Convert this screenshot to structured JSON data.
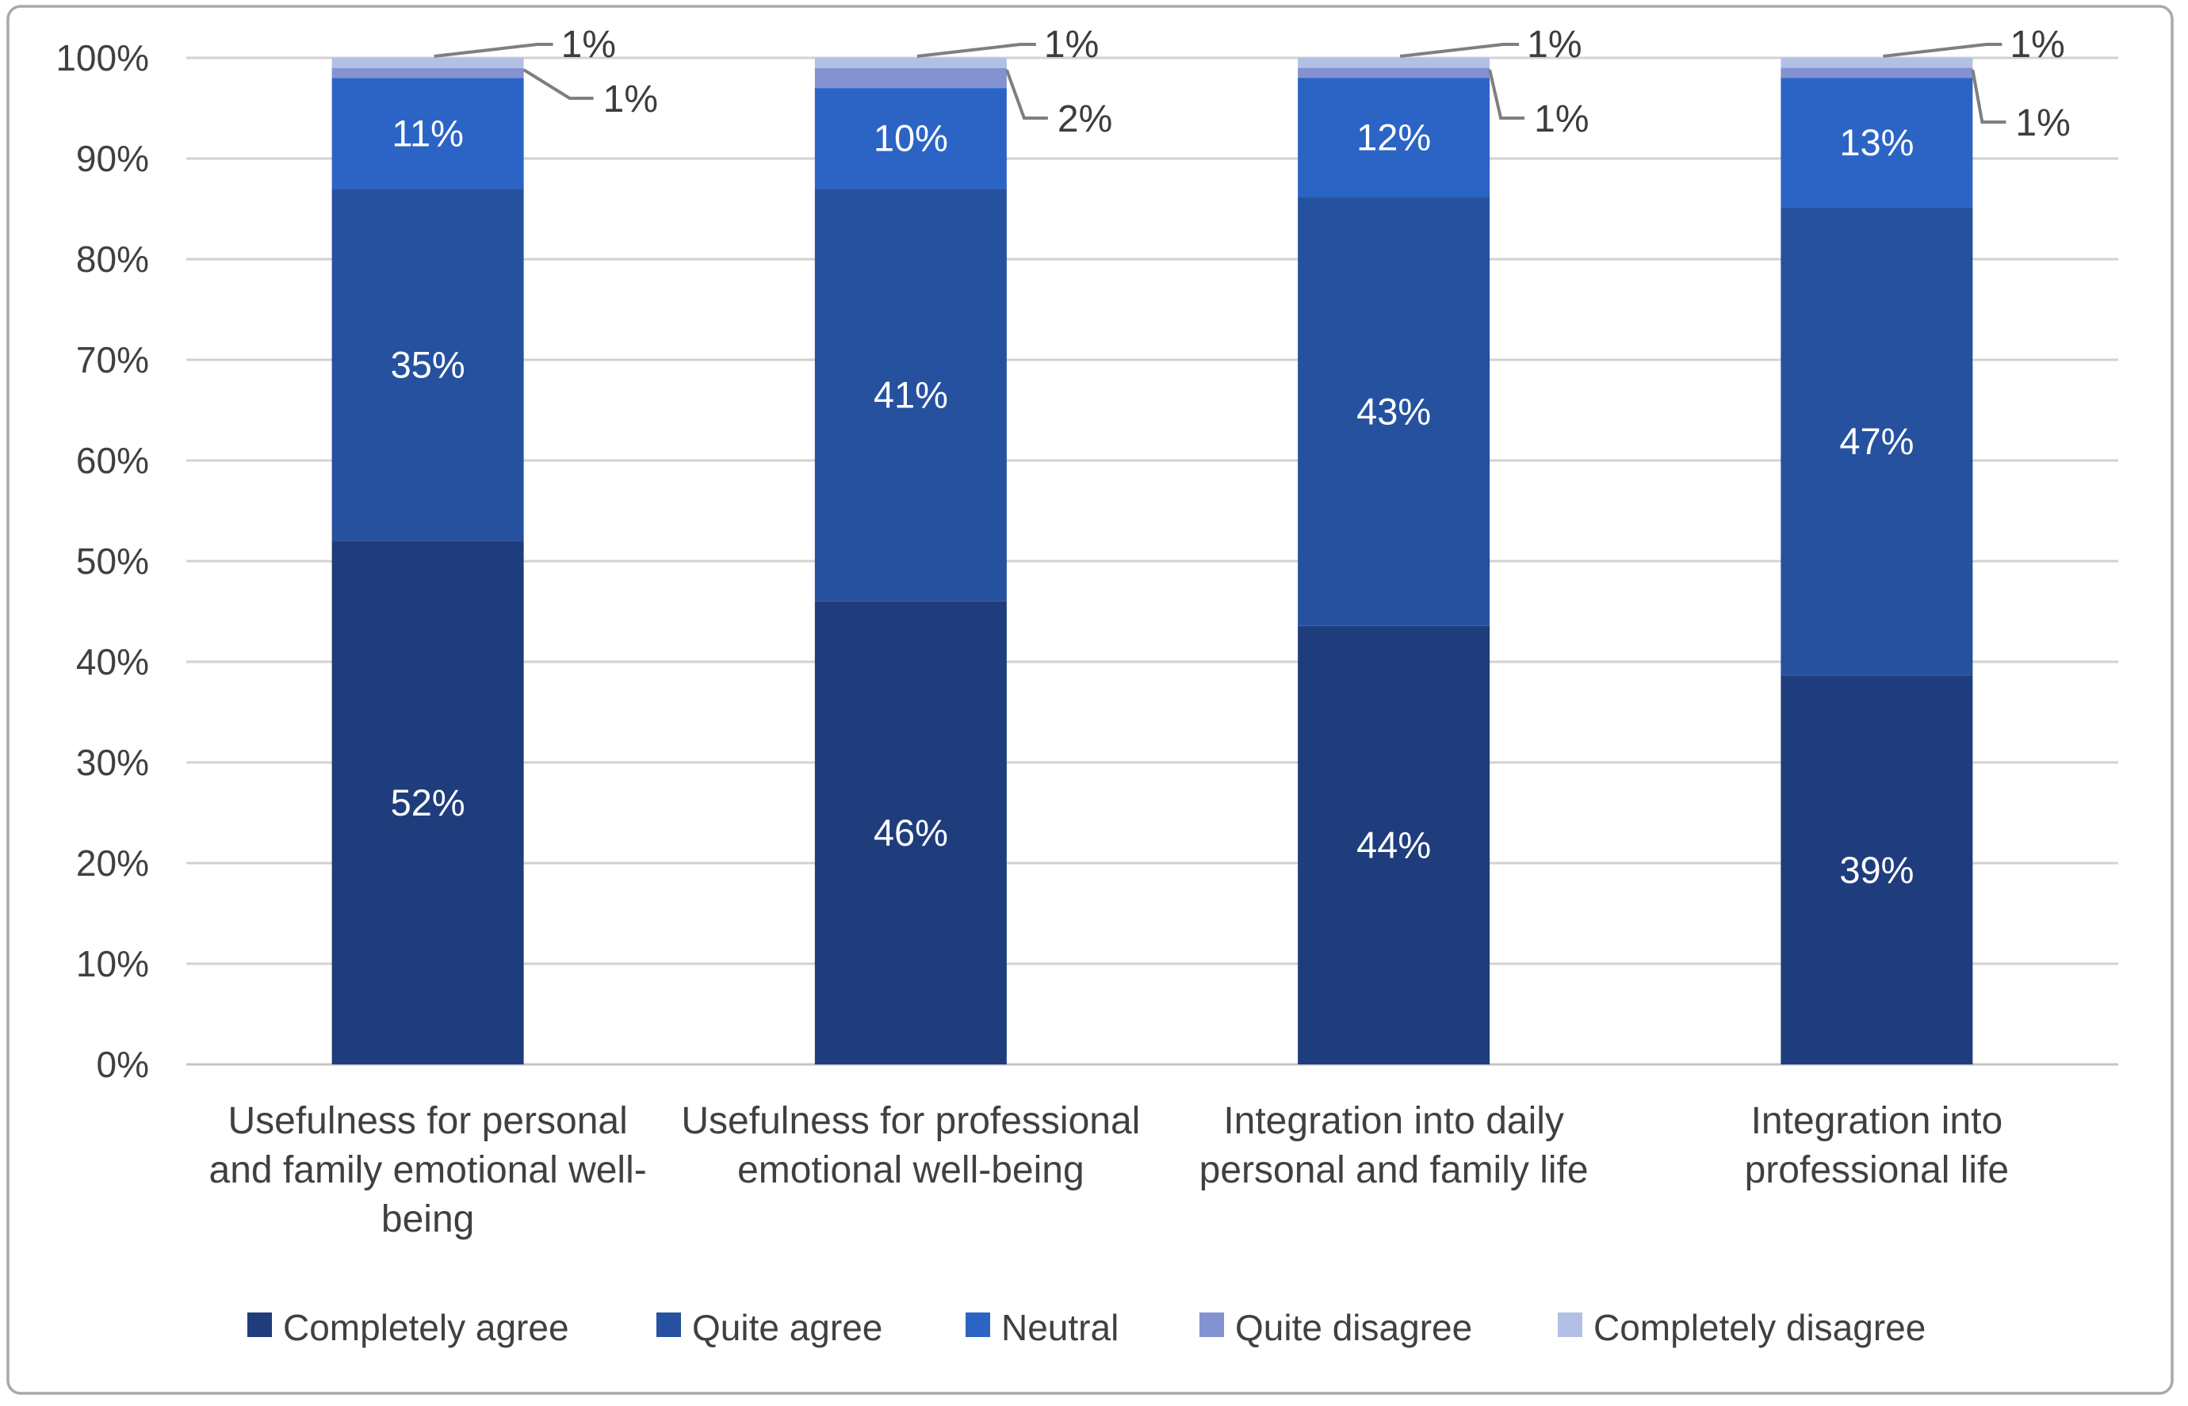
{
  "chart_data": {
    "type": "bar",
    "subtype": "stacked-100-percent-column",
    "title": "",
    "xlabel": "",
    "ylabel": "",
    "gridlines": true,
    "legend_position": "bottom",
    "y_axis": {
      "min": 0,
      "max": 100,
      "tick_step": 10,
      "tick_labels": [
        "0%",
        "10%",
        "20%",
        "30%",
        "40%",
        "50%",
        "60%",
        "70%",
        "80%",
        "90%",
        "100%"
      ]
    },
    "categories": [
      "Usefulness for personal and family emotional well-being",
      "Usefulness for professional emotional well-being",
      "Integration into daily personal and family life",
      "Integration into professional life"
    ],
    "categories_lines": [
      [
        "Usefulness for personal",
        "and family emotional well-",
        "being"
      ],
      [
        "Usefulness for professional",
        "emotional well-being"
      ],
      [
        "Integration into daily",
        "personal and family life"
      ],
      [
        "Integration into",
        "professional life"
      ]
    ],
    "series": [
      {
        "name": "Completely agree",
        "color": "#1f3d7c",
        "values": [
          52,
          46,
          44,
          39
        ]
      },
      {
        "name": "Quite agree",
        "color": "#26519f",
        "values": [
          35,
          41,
          43,
          47
        ]
      },
      {
        "name": "Neutral",
        "color": "#2c64c6",
        "values": [
          11,
          10,
          12,
          13
        ]
      },
      {
        "name": "Quite disagree",
        "color": "#8393d1",
        "values": [
          1,
          2,
          1,
          1
        ]
      },
      {
        "name": "Completely disagree",
        "color": "#b3c0e5",
        "values": [
          1,
          1,
          1,
          1
        ]
      }
    ],
    "data_label_suffix": "%",
    "callout_series": [
      "Quite disagree",
      "Completely disagree"
    ]
  },
  "style_colors": {
    "axis_text": "#404040",
    "category_text": "#404040",
    "legend_text": "#404040",
    "callout_text": "#3d3d3d",
    "data_label_text": "#ffffff",
    "gridline": "#d2d2d2",
    "baseline": "#c4c4c4",
    "leader_line": "#7f7f7f",
    "frame_border": "#a9a9a9",
    "background": "#ffffff"
  }
}
